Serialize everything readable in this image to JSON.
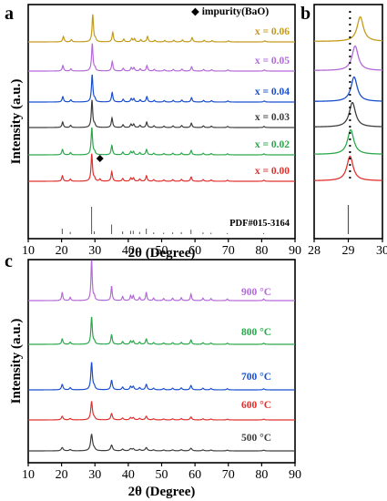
{
  "chart_data": [
    {
      "panel_label": "a",
      "type": "line",
      "xlabel": "2θ (Degree)",
      "ylabel": "Intensity (a.u.)",
      "xlim": [
        10,
        90
      ],
      "xticks": [
        10,
        20,
        30,
        40,
        50,
        60,
        70,
        80,
        90
      ],
      "grid": false,
      "legend_note": "◆ impurity(BaO)",
      "impurity_peak": {
        "x": 31.5,
        "series": "x = 0.00"
      },
      "reference": {
        "label": "PDF#015-3164",
        "sticks": [
          {
            "x": 20.2,
            "h": 0.2
          },
          {
            "x": 22.6,
            "h": 0.08
          },
          {
            "x": 29.0,
            "h": 1.0
          },
          {
            "x": 29.8,
            "h": 0.1
          },
          {
            "x": 35.0,
            "h": 0.35
          },
          {
            "x": 38.3,
            "h": 0.1
          },
          {
            "x": 40.7,
            "h": 0.12
          },
          {
            "x": 41.5,
            "h": 0.12
          },
          {
            "x": 43.4,
            "h": 0.08
          },
          {
            "x": 45.4,
            "h": 0.2
          },
          {
            "x": 47.6,
            "h": 0.06
          },
          {
            "x": 50.6,
            "h": 0.05
          },
          {
            "x": 53.3,
            "h": 0.06
          },
          {
            "x": 55.9,
            "h": 0.07
          },
          {
            "x": 58.8,
            "h": 0.16
          },
          {
            "x": 62.4,
            "h": 0.06
          },
          {
            "x": 64.8,
            "h": 0.05
          },
          {
            "x": 69.7,
            "h": 0.04
          },
          {
            "x": 80.6,
            "h": 0.04
          }
        ]
      },
      "series": [
        {
          "name": "x = 0.00",
          "color": "#e0312f"
        },
        {
          "name": "x = 0.02",
          "color": "#2aa84a"
        },
        {
          "name": "x = 0.03",
          "color": "#3d3d3d"
        },
        {
          "name": "x = 0.04",
          "color": "#1a4fcf"
        },
        {
          "name": "x = 0.05",
          "color": "#b36ad9"
        },
        {
          "name": "x = 0.06",
          "color": "#c49a1a"
        }
      ]
    },
    {
      "panel_label": "b",
      "type": "line",
      "xlim": [
        28,
        30
      ],
      "xticks": [
        28,
        29,
        30
      ],
      "reference_line_x": 29.0,
      "reference_stick_x": 29.0,
      "dotted_line_x": 29.05,
      "series": [
        {
          "name": "x = 0.00",
          "peak_x": 29.05,
          "color": "#e0312f"
        },
        {
          "name": "x = 0.02",
          "peak_x": 29.07,
          "color": "#2aa84a"
        },
        {
          "name": "x = 0.03",
          "peak_x": 29.12,
          "color": "#3d3d3d"
        },
        {
          "name": "x = 0.04",
          "peak_x": 29.17,
          "color": "#1a4fcf"
        },
        {
          "name": "x = 0.05",
          "peak_x": 29.2,
          "color": "#b36ad9"
        },
        {
          "name": "x = 0.06",
          "peak_x": 29.35,
          "color": "#c49a1a"
        }
      ]
    },
    {
      "panel_label": "c",
      "type": "line",
      "xlabel": "2θ (Degree)",
      "ylabel": "Intensity (a.u.)",
      "xlim": [
        10,
        90
      ],
      "xticks": [
        10,
        20,
        30,
        40,
        50,
        60,
        70,
        80,
        90
      ],
      "grid": false,
      "series": [
        {
          "name": "500 °C",
          "color": "#3d3d3d"
        },
        {
          "name": "600 °C",
          "color": "#e0312f"
        },
        {
          "name": "700 °C",
          "color": "#1a4fcf"
        },
        {
          "name": "800 °C",
          "color": "#2aa84a"
        },
        {
          "name": "900 °C",
          "color": "#b36ad9"
        }
      ]
    }
  ]
}
